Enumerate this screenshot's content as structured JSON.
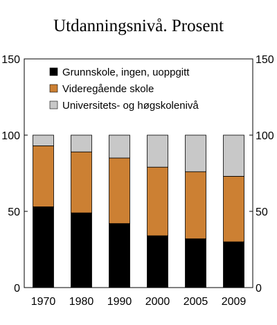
{
  "chart_data": {
    "type": "bar",
    "stacked": true,
    "title": "Utdanningsnivå. Prosent",
    "categories": [
      "1970",
      "1980",
      "1990",
      "2000",
      "2005",
      "2009"
    ],
    "series": [
      {
        "name": "Grunnskole, ingen, uoppgitt",
        "color": "#000000",
        "values": [
          53,
          49,
          42,
          34,
          32,
          30
        ]
      },
      {
        "name": "Videregående skole",
        "color": "#cc8033",
        "values": [
          40,
          40,
          43,
          45,
          44,
          43
        ]
      },
      {
        "name": "Universitets- og høgskolenivå",
        "color": "#c8c8c8",
        "values": [
          7,
          11,
          15,
          21,
          24,
          27
        ]
      }
    ],
    "ylim": [
      0,
      150
    ],
    "yticks": [
      0,
      50,
      100,
      150
    ],
    "y_axis_left_and_right": true,
    "grid": false,
    "legend_position": "top-left"
  }
}
